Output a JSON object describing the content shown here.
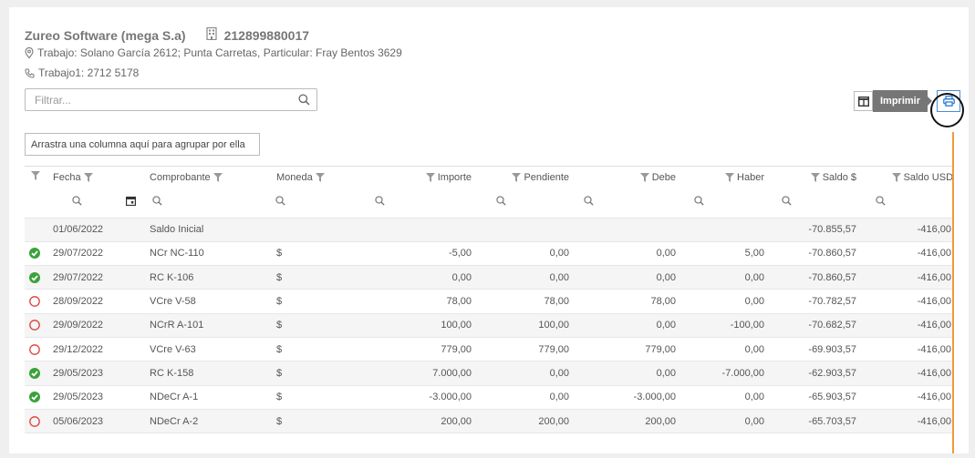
{
  "header": {
    "company_name": "Zureo Software (mega S.a)",
    "rut": "212899880017",
    "address": "Trabajo: Solano García 2612; Punta Carretas, Particular: Fray Bentos 3629",
    "phone": "Trabajo1: 2712 5178"
  },
  "filter": {
    "placeholder": "Filtrar..."
  },
  "toolbar": {
    "print_tooltip": "Imprimir"
  },
  "group_panel": {
    "text": "Arrastra una columna aquí para agrupar por ella"
  },
  "colors": {
    "link": "#3579c3",
    "ok_green": "#3aa23a",
    "pending_red": "#d9433a",
    "accent_orange": "#f19a3b",
    "print_blue": "#2d7bd0"
  },
  "columns": {
    "fecha": "Fecha",
    "comprobante": "Comprobante",
    "moneda": "Moneda",
    "importe": "Importe",
    "pendiente": "Pendiente",
    "debe": "Debe",
    "haber": "Haber",
    "saldo": "Saldo $",
    "saldo_usd": "Saldo USD"
  },
  "rows": [
    {
      "status": "",
      "fecha": "01/06/2022",
      "comprobante": "Saldo Inicial",
      "moneda": "",
      "importe": "",
      "pendiente": "",
      "debe": "",
      "haber": "",
      "saldo": "-70.855,57",
      "saldo_usd": "-416,00"
    },
    {
      "status": "ok",
      "fecha": "29/07/2022",
      "comprobante": "NCr NC-110",
      "moneda": "$",
      "importe": "-5,00",
      "pendiente": "0,00",
      "debe": "0,00",
      "haber": "5,00",
      "saldo": "-70.860,57",
      "saldo_usd": "-416,00"
    },
    {
      "status": "ok",
      "fecha": "29/07/2022",
      "comprobante": "RC K-106",
      "moneda": "$",
      "importe": "0,00",
      "pendiente": "0,00",
      "debe": "0,00",
      "haber": "0,00",
      "saldo": "-70.860,57",
      "saldo_usd": "-416,00"
    },
    {
      "status": "pending",
      "fecha": "28/09/2022",
      "comprobante": "VCre V-58",
      "moneda": "$",
      "importe": "78,00",
      "pendiente": "78,00",
      "debe": "78,00",
      "haber": "0,00",
      "saldo": "-70.782,57",
      "saldo_usd": "-416,00"
    },
    {
      "status": "pending",
      "fecha": "29/09/2022",
      "comprobante": "NCrR A-101",
      "moneda": "$",
      "importe": "100,00",
      "pendiente": "100,00",
      "debe": "0,00",
      "haber": "-100,00",
      "saldo": "-70.682,57",
      "saldo_usd": "-416,00"
    },
    {
      "status": "pending",
      "fecha": "29/12/2022",
      "comprobante": "VCre V-63",
      "moneda": "$",
      "importe": "779,00",
      "pendiente": "779,00",
      "debe": "779,00",
      "haber": "0,00",
      "saldo": "-69.903,57",
      "saldo_usd": "-416,00"
    },
    {
      "status": "ok",
      "fecha": "29/05/2023",
      "comprobante": "RC K-158",
      "moneda": "$",
      "importe": "7.000,00",
      "pendiente": "0,00",
      "debe": "0,00",
      "haber": "-7.000,00",
      "saldo": "-62.903,57",
      "saldo_usd": "-416,00"
    },
    {
      "status": "ok",
      "fecha": "29/05/2023",
      "comprobante": "NDeCr A-1",
      "moneda": "$",
      "importe": "-3.000,00",
      "pendiente": "0,00",
      "debe": "-3.000,00",
      "haber": "0,00",
      "saldo": "-65.903,57",
      "saldo_usd": "-416,00"
    },
    {
      "status": "pending",
      "fecha": "05/06/2023",
      "comprobante": "NDeCr A-2",
      "moneda": "$",
      "importe": "200,00",
      "pendiente": "200,00",
      "debe": "200,00",
      "haber": "0,00",
      "saldo": "-65.703,57",
      "saldo_usd": "-416,00"
    }
  ]
}
